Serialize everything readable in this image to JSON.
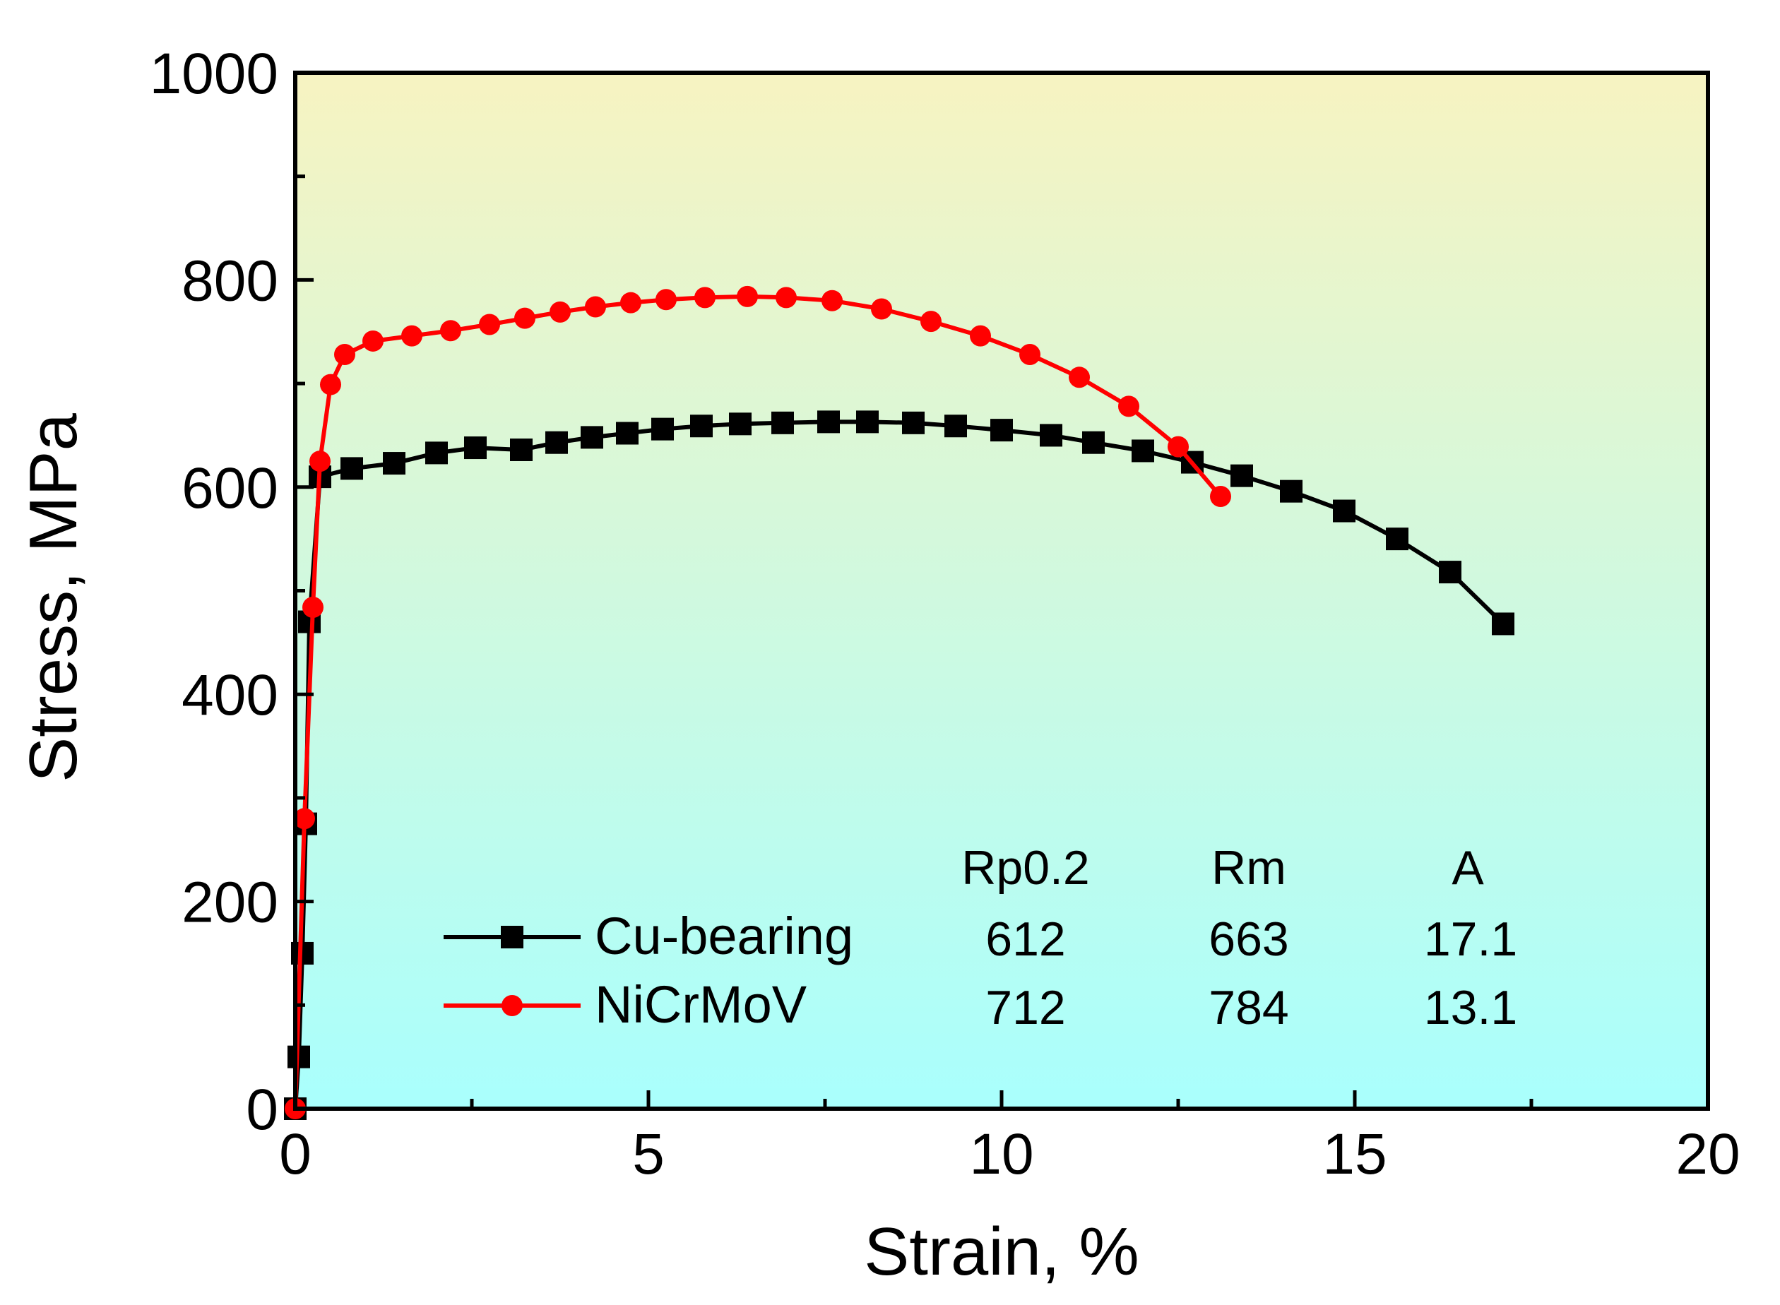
{
  "chart_data": {
    "type": "line",
    "title": "",
    "xlabel": "Strain, %",
    "ylabel": "Stress, MPa",
    "xlim": [
      0,
      20
    ],
    "ylim": [
      0,
      1000
    ],
    "x_ticks": [
      0,
      5,
      10,
      15,
      20
    ],
    "y_ticks": [
      0,
      200,
      400,
      600,
      800,
      1000
    ],
    "grid": false,
    "legend_position": "bottom-left",
    "background_gradient": {
      "top": "#f7f3c1",
      "bottom": "#a9fffd"
    },
    "series": [
      {
        "name": "Cu-bearing",
        "color": "#000000",
        "marker": "square",
        "x": [
          0,
          0.05,
          0.1,
          0.15,
          0.2,
          0.35,
          0.8,
          1.4,
          2.0,
          2.55,
          3.2,
          3.7,
          4.2,
          4.7,
          5.2,
          5.75,
          6.3,
          6.9,
          7.55,
          8.1,
          8.75,
          9.35,
          10.0,
          10.7,
          11.3,
          12.0,
          12.7,
          13.4,
          14.1,
          14.85,
          15.6,
          16.35,
          17.1
        ],
        "y": [
          0,
          50,
          150,
          275,
          470,
          610,
          618,
          623,
          633,
          638,
          636,
          643,
          648,
          652,
          656,
          659,
          661,
          662,
          663,
          663,
          662,
          659,
          655,
          650,
          643,
          635,
          624,
          611,
          596,
          577,
          550,
          518,
          468
        ]
      },
      {
        "name": "NiCrMoV",
        "color": "#ff0000",
        "marker": "circle",
        "x": [
          0,
          0.13,
          0.25,
          0.35,
          0.5,
          0.7,
          1.1,
          1.65,
          2.2,
          2.75,
          3.25,
          3.75,
          4.25,
          4.75,
          5.25,
          5.8,
          6.4,
          6.95,
          7.6,
          8.3,
          9.0,
          9.7,
          10.4,
          11.1,
          11.8,
          12.5,
          13.1
        ],
        "y": [
          0,
          280,
          484,
          625,
          699,
          728,
          741,
          746,
          751,
          757,
          763,
          769,
          774,
          778,
          781,
          783,
          784,
          783,
          780,
          772,
          760,
          746,
          728,
          706,
          678,
          639,
          591
        ]
      }
    ],
    "table": {
      "headers": [
        "Rp0.2",
        "Rm",
        "A"
      ],
      "rows": [
        {
          "label": "Cu-bearing",
          "values": [
            "612",
            "663",
            "17.1"
          ]
        },
        {
          "label": "NiCrMoV",
          "values": [
            "712",
            "784",
            "13.1"
          ]
        }
      ]
    }
  }
}
